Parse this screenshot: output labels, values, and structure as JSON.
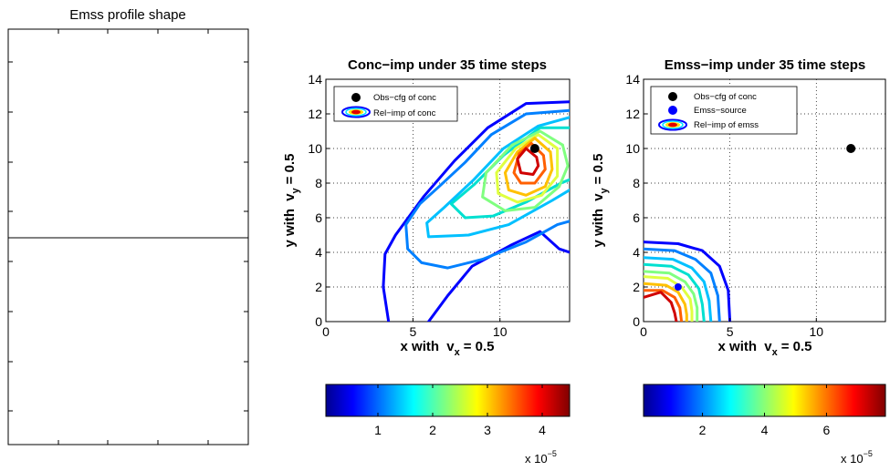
{
  "left_panel": {
    "title": "Emss profile shape"
  },
  "chart_data": [
    {
      "type": "contour",
      "title": "Conc−imp under 35 time steps",
      "xlabel": "x with",
      "ylabel": "y with",
      "velocity_x": {
        "symbol": "v",
        "sub": "x",
        "value_text": "= 0.5"
      },
      "velocity_y": {
        "symbol": "v",
        "sub": "y",
        "value_text": "= 0.5"
      },
      "xlim": [
        0,
        14
      ],
      "ylim": [
        0,
        14
      ],
      "xticks": [
        0,
        5,
        10
      ],
      "yticks": [
        0,
        2,
        4,
        6,
        8,
        10,
        12,
        14
      ],
      "grid": true,
      "legend_placement": "top-left",
      "legend": [
        {
          "label": "Obs−cfg of conc",
          "marker": "black-dot"
        },
        {
          "label": "Rel−imp of conc",
          "marker": "contour-ellipse"
        }
      ],
      "observation_point": [
        12,
        10
      ],
      "contours": [
        {
          "color": "#0000ff",
          "points": [
            [
              3.6,
              0
            ],
            [
              3.3,
              2
            ],
            [
              3.4,
              3.9
            ],
            [
              4.0,
              5.0
            ],
            [
              5.6,
              7.2
            ],
            [
              7.4,
              9.3
            ],
            [
              9.3,
              11.2
            ],
            [
              11.5,
              12.6
            ],
            [
              14,
              12.7
            ]
          ]
        },
        {
          "color": "#0000ff",
          "points": [
            [
              5.9,
              0
            ],
            [
              7.0,
              1.5
            ],
            [
              8.4,
              3.2
            ],
            [
              10.6,
              4.4
            ],
            [
              12.3,
              5.2
            ],
            [
              13.4,
              4.2
            ],
            [
              14,
              4.0
            ]
          ]
        },
        {
          "color": "#0080ff",
          "points": [
            [
              14,
              12.2
            ],
            [
              11.5,
              12.0
            ],
            [
              9.5,
              10.8
            ],
            [
              8.0,
              9.2
            ],
            [
              6.5,
              7.8
            ],
            [
              5.4,
              6.8
            ],
            [
              4.6,
              5.6
            ],
            [
              4.7,
              4.2
            ],
            [
              5.5,
              3.4
            ],
            [
              7.0,
              3.1
            ],
            [
              9.0,
              3.6
            ],
            [
              11.5,
              4.6
            ],
            [
              13.3,
              5.6
            ],
            [
              14,
              5.8
            ]
          ]
        },
        {
          "color": "#00c0ff",
          "points": [
            [
              14,
              11.8
            ],
            [
              12.2,
              11.3
            ],
            [
              10.2,
              10.0
            ],
            [
              8.5,
              8.2
            ],
            [
              6.8,
              6.6
            ],
            [
              5.8,
              5.7
            ],
            [
              5.9,
              4.9
            ],
            [
              8.2,
              5.0
            ],
            [
              10.5,
              5.6
            ],
            [
              13.0,
              7.0
            ],
            [
              14,
              7.6
            ]
          ]
        },
        {
          "color": "#00e0d0",
          "points": [
            [
              14,
              11.2
            ],
            [
              12.3,
              11.2
            ],
            [
              10.2,
              9.6
            ],
            [
              8.5,
              7.9
            ],
            [
              7.2,
              6.8
            ],
            [
              8.0,
              6.0
            ],
            [
              9.6,
              6.1
            ],
            [
              11.5,
              6.9
            ],
            [
              13.5,
              8.0
            ],
            [
              14,
              8.2
            ]
          ]
        },
        {
          "color": "#80ff80",
          "points": [
            [
              13.6,
              10.2
            ],
            [
              12.3,
              11.0
            ],
            [
              10.7,
              10.2
            ],
            [
              9.2,
              8.6
            ],
            [
              9.0,
              7.2
            ],
            [
              10.3,
              6.4
            ],
            [
              12.0,
              6.6
            ],
            [
              13.4,
              7.8
            ],
            [
              13.9,
              9.0
            ],
            [
              13.6,
              10.2
            ]
          ]
        },
        {
          "color": "#e0ff40",
          "points": [
            [
              13.3,
              10.0
            ],
            [
              12.2,
              10.8
            ],
            [
              10.9,
              10.0
            ],
            [
              9.8,
              8.6
            ],
            [
              9.9,
              7.4
            ],
            [
              11.0,
              6.9
            ],
            [
              12.4,
              7.3
            ],
            [
              13.3,
              8.4
            ],
            [
              13.3,
              10.0
            ]
          ]
        },
        {
          "color": "#ffc000",
          "points": [
            [
              12.9,
              9.8
            ],
            [
              12.0,
              10.6
            ],
            [
              11.0,
              9.8
            ],
            [
              10.3,
              8.6
            ],
            [
              10.5,
              7.6
            ],
            [
              11.5,
              7.3
            ],
            [
              12.6,
              7.8
            ],
            [
              13.0,
              8.8
            ],
            [
              12.9,
              9.8
            ]
          ]
        },
        {
          "color": "#ff6000",
          "points": [
            [
              12.5,
              9.6
            ],
            [
              11.8,
              10.3
            ],
            [
              11.1,
              9.7
            ],
            [
              10.8,
              8.6
            ],
            [
              11.2,
              8.0
            ],
            [
              12.0,
              8.0
            ],
            [
              12.6,
              8.8
            ],
            [
              12.5,
              9.6
            ]
          ]
        },
        {
          "color": "#d00000",
          "points": [
            [
              12.1,
              9.5
            ],
            [
              11.5,
              10.0
            ],
            [
              11.0,
              9.4
            ],
            [
              11.2,
              8.6
            ],
            [
              11.9,
              8.5
            ],
            [
              12.2,
              9.0
            ],
            [
              12.1,
              9.5
            ]
          ]
        }
      ],
      "colorbar": {
        "ticks": [
          "1",
          "2",
          "3",
          "4"
        ],
        "tick_values": [
          1,
          2,
          3,
          4
        ],
        "range": [
          0.05,
          4.5
        ],
        "multiplier_base": "x 10",
        "multiplier_exp": "−5"
      }
    },
    {
      "type": "contour",
      "title": "Emss−imp under 35 time steps",
      "xlabel": "x with",
      "ylabel": "y with",
      "velocity_x": {
        "symbol": "v",
        "sub": "x",
        "value_text": "= 0.5"
      },
      "velocity_y": {
        "symbol": "v",
        "sub": "y",
        "value_text": "= 0.5"
      },
      "xlim": [
        0,
        14
      ],
      "ylim": [
        0,
        14
      ],
      "xticks": [
        0,
        5,
        10
      ],
      "yticks": [
        0,
        2,
        4,
        6,
        8,
        10,
        12,
        14
      ],
      "grid": true,
      "legend_placement": "top-left",
      "legend": [
        {
          "label": "Obs−cfg of conc",
          "marker": "black-dot"
        },
        {
          "label": "Emss−source",
          "marker": "blue-dot"
        },
        {
          "label": "Rel−imp of emss",
          "marker": "contour-ellipse"
        }
      ],
      "observation_point": [
        12,
        10
      ],
      "source_point": [
        2,
        2
      ],
      "contours": [
        {
          "color": "#0000ff",
          "points": [
            [
              0,
              4.6
            ],
            [
              2.0,
              4.5
            ],
            [
              3.4,
              4.1
            ],
            [
              4.4,
              3.2
            ],
            [
              4.9,
              1.8
            ],
            [
              5.0,
              0
            ]
          ]
        },
        {
          "color": "#0080ff",
          "points": [
            [
              0,
              4.2
            ],
            [
              1.8,
              4.1
            ],
            [
              3.0,
              3.6
            ],
            [
              3.9,
              2.8
            ],
            [
              4.3,
              1.5
            ],
            [
              4.4,
              0
            ]
          ]
        },
        {
          "color": "#00c0ff",
          "points": [
            [
              0,
              3.7
            ],
            [
              1.7,
              3.6
            ],
            [
              2.8,
              3.1
            ],
            [
              3.5,
              2.3
            ],
            [
              3.8,
              1.2
            ],
            [
              3.9,
              0
            ]
          ]
        },
        {
          "color": "#00e0d0",
          "points": [
            [
              0,
              3.3
            ],
            [
              1.6,
              3.2
            ],
            [
              2.6,
              2.7
            ],
            [
              3.2,
              1.9
            ],
            [
              3.4,
              1.0
            ],
            [
              3.5,
              0
            ]
          ]
        },
        {
          "color": "#80ff80",
          "points": [
            [
              0,
              2.9
            ],
            [
              1.5,
              2.8
            ],
            [
              2.4,
              2.3
            ],
            [
              2.9,
              1.6
            ],
            [
              3.1,
              0.8
            ],
            [
              3.1,
              0
            ]
          ]
        },
        {
          "color": "#e0ff40",
          "points": [
            [
              0,
              2.6
            ],
            [
              1.4,
              2.5
            ],
            [
              2.2,
              2.0
            ],
            [
              2.7,
              1.3
            ],
            [
              2.8,
              0.6
            ],
            [
              2.8,
              0
            ]
          ]
        },
        {
          "color": "#ffc000",
          "points": [
            [
              0,
              2.2
            ],
            [
              1.3,
              2.1
            ],
            [
              2.0,
              1.7
            ],
            [
              2.4,
              1.0
            ],
            [
              2.5,
              0.4
            ],
            [
              2.5,
              0
            ]
          ]
        },
        {
          "color": "#ff6000",
          "points": [
            [
              0,
              1.8
            ],
            [
              1.1,
              1.8
            ],
            [
              1.8,
              1.4
            ],
            [
              2.1,
              0.8
            ],
            [
              2.2,
              0
            ]
          ]
        },
        {
          "color": "#d00000",
          "points": [
            [
              0,
              1.4
            ],
            [
              1.0,
              1.7
            ],
            [
              1.6,
              1.1
            ],
            [
              1.8,
              0.5
            ],
            [
              1.9,
              0
            ]
          ]
        }
      ],
      "colorbar": {
        "ticks": [
          "2",
          "4",
          "6"
        ],
        "tick_values": [
          2,
          4,
          6
        ],
        "range": [
          0.1,
          7.9
        ],
        "multiplier_base": "x 10",
        "multiplier_exp": "−5"
      }
    }
  ]
}
